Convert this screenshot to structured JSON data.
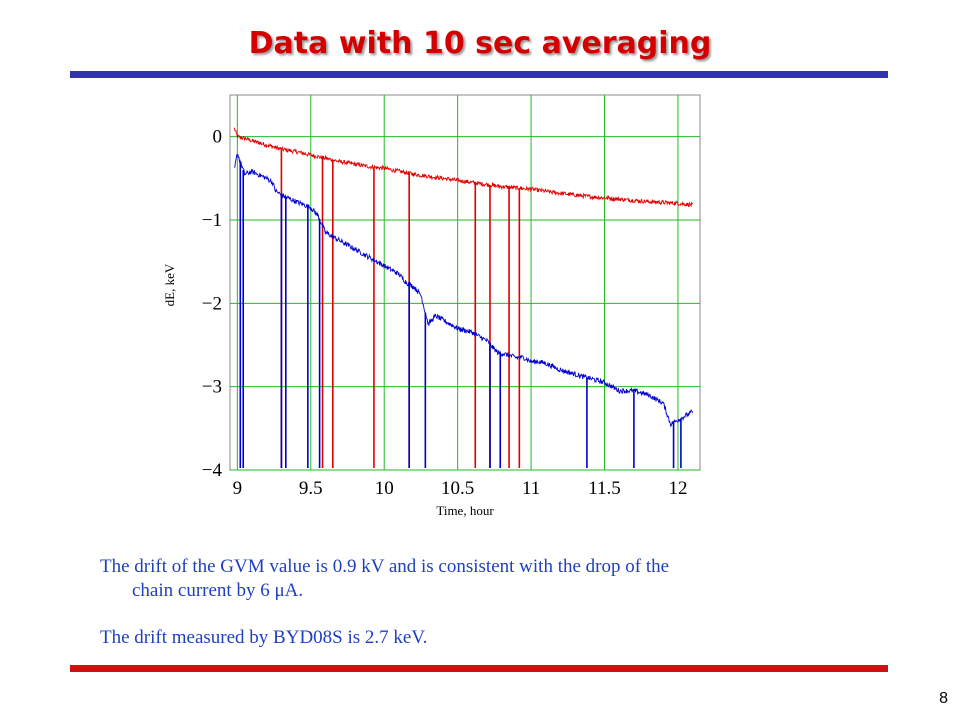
{
  "slide": {
    "title": "Data with 10 sec averaging",
    "rule_color": "#3333aa",
    "rule_bottom_color": "#cc1111",
    "text1_line1": "The drift of the GVM value is 0.9 kV and is consistent with the drop of the",
    "text1_line2": "chain current by 6 μA.",
    "text2": "The drift measured by BYD08S is 2.7 keV.",
    "page_number": "8"
  },
  "chart_data": {
    "type": "line",
    "xlabel": "Time, hour",
    "ylabel": "dE, keV",
    "xlim": [
      8.95,
      12.15
    ],
    "ylim": [
      -4.0,
      0.5
    ],
    "xticks": [
      9,
      9.5,
      10,
      10.5,
      11,
      11.5,
      12
    ],
    "xtick_labels": [
      "9",
      "9.5",
      "10",
      "10.5",
      "11",
      "11.5",
      "12"
    ],
    "yticks": [
      0,
      -1,
      -2,
      -3,
      -4
    ],
    "ytick_labels": [
      "0",
      "−1",
      "−2",
      "−3",
      "−4"
    ],
    "grid": true,
    "grid_color": "#22bb22",
    "series": [
      {
        "color": "#e00000",
        "x": [
          8.98,
          9.0,
          9.05,
          9.1,
          9.2,
          9.3,
          9.4,
          9.5,
          9.6,
          9.7,
          9.8,
          9.9,
          10.0,
          10.2,
          10.4,
          10.6,
          10.8,
          11.0,
          11.2,
          11.4,
          11.6,
          11.8,
          12.0,
          12.1
        ],
        "y": [
          0.1,
          0.0,
          -0.02,
          -0.05,
          -0.1,
          -0.15,
          -0.18,
          -0.22,
          -0.26,
          -0.3,
          -0.33,
          -0.36,
          -0.38,
          -0.45,
          -0.5,
          -0.55,
          -0.6,
          -0.63,
          -0.68,
          -0.72,
          -0.75,
          -0.78,
          -0.8,
          -0.82
        ],
        "dropouts": [
          9.3,
          9.58,
          9.65,
          9.93,
          10.17,
          10.62,
          10.72,
          10.85,
          10.92
        ],
        "noise": 0.025
      },
      {
        "color": "#0000cc",
        "x": [
          8.98,
          9.0,
          9.05,
          9.1,
          9.2,
          9.24,
          9.26,
          9.3,
          9.4,
          9.5,
          9.55,
          9.6,
          9.7,
          9.8,
          9.9,
          10.0,
          10.1,
          10.15,
          10.2,
          10.25,
          10.3,
          10.35,
          10.4,
          10.5,
          10.6,
          10.7,
          10.75,
          10.78,
          10.8,
          10.9,
          10.95,
          11.0,
          11.05,
          11.1,
          11.2,
          11.3,
          11.35,
          11.4,
          11.5,
          11.55,
          11.6,
          11.7,
          11.8,
          11.85,
          11.9,
          11.95,
          12.0,
          12.05,
          12.1
        ],
        "y": [
          -0.4,
          -0.2,
          -0.45,
          -0.42,
          -0.5,
          -0.55,
          -0.65,
          -0.7,
          -0.78,
          -0.85,
          -0.95,
          -1.15,
          -1.25,
          -1.35,
          -1.45,
          -1.55,
          -1.65,
          -1.75,
          -1.8,
          -1.9,
          -2.25,
          -2.15,
          -2.2,
          -2.3,
          -2.35,
          -2.45,
          -2.55,
          -2.6,
          -2.6,
          -2.65,
          -2.65,
          -2.7,
          -2.7,
          -2.72,
          -2.8,
          -2.85,
          -2.88,
          -2.9,
          -2.95,
          -3.0,
          -3.05,
          -3.05,
          -3.1,
          -3.15,
          -3.2,
          -3.45,
          -3.4,
          -3.35,
          -3.3
        ],
        "dropouts": [
          9.02,
          9.04,
          9.3,
          9.33,
          9.48,
          9.56,
          10.17,
          10.28,
          10.72,
          10.79,
          11.38,
          11.7,
          11.97,
          12.02
        ],
        "noise": 0.03
      }
    ]
  }
}
